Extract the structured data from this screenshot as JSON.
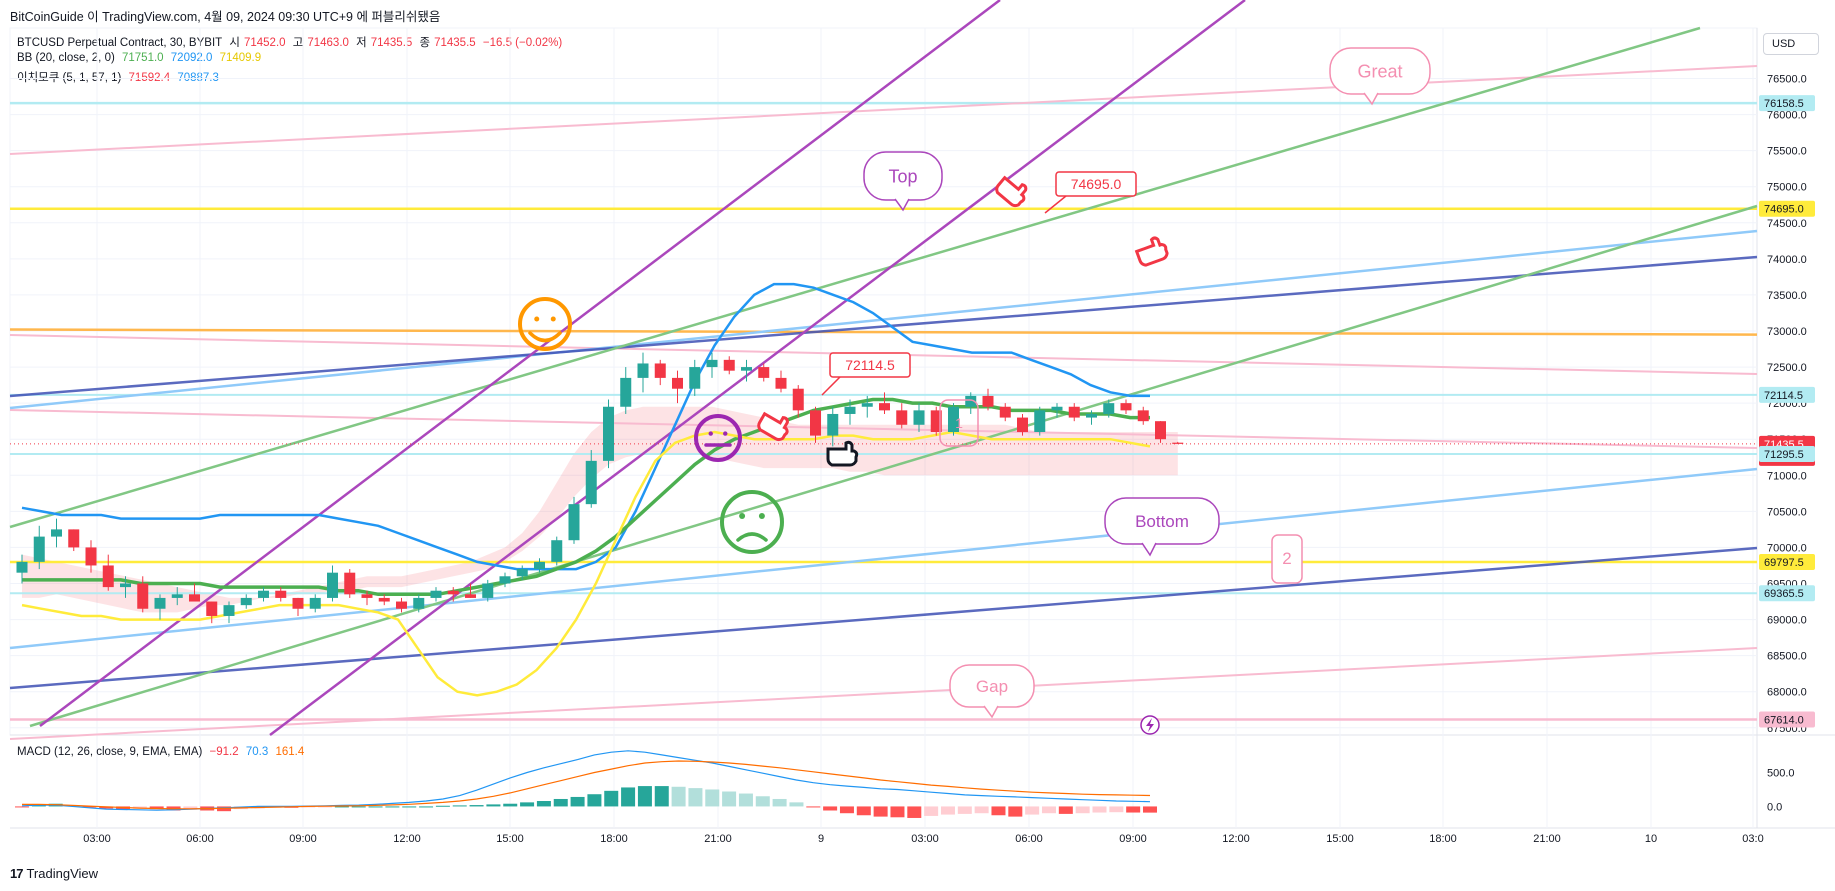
{
  "header": {
    "publisher": "BitCoinGuide 이 TradingView.com, 4월 09, 2024 09:30 UTC+9 에 퍼블리쉬됐음"
  },
  "legend": {
    "symbol": "BTCUSD Perpetual Contract, 30, BYBIT",
    "ohlc": [
      {
        "label": "시",
        "value": "71452.0"
      },
      {
        "label": "고",
        "value": "71463.0"
      },
      {
        "label": "저",
        "value": "71435.5"
      },
      {
        "label": "종",
        "value": "71435.5"
      }
    ],
    "change": "−16.5 (−0.02%)",
    "bb": {
      "label": "BB (20, close, 2, 0)",
      "basis": "71751.0",
      "upper": "72092.0",
      "lower": "71409.9"
    },
    "ichimoku": {
      "label": "이치모쿠 (5, 1, 57, 1)",
      "a": "71592.4",
      "b": "70887.3"
    },
    "macd": {
      "label": "MACD (12, 26, close, 9, EMA, EMA)",
      "hist": "−91.2",
      "macd": "70.3",
      "signal": "161.4"
    }
  },
  "currency_button": "USD",
  "footer": {
    "brand": "TradingView",
    "mark": "17"
  },
  "colors": {
    "up": "#26a69a",
    "down": "#f23645",
    "bb_basis": "#4caf50",
    "bb_upper": "#2196f3",
    "bb_lower": "#ffeb3b",
    "purple": "#ab47bc",
    "pink": "#f8bbd0",
    "cyan": "#b2ebf2",
    "yellow": "#ffeb3b",
    "orange": "#ffb74d",
    "navy": "#3f51b5",
    "blue": "#90caf9",
    "green": "#81c784"
  },
  "chart_data": {
    "type": "candlestick",
    "symbol": "BTCUSD Perpetual Contract",
    "interval": "30",
    "ylim": [
      67400,
      77200
    ],
    "y_ticks": [
      "76500.0",
      "76000.0",
      "75500.0",
      "75000.0",
      "74500.0",
      "74000.0",
      "73500.0",
      "73000.0",
      "72500.0",
      "72000.0",
      "71500.0",
      "71000.0",
      "70500.0",
      "70000.0",
      "69500.0",
      "69000.0",
      "68500.0",
      "68000.0",
      "67500.0"
    ],
    "x_ticks": [
      "03:00",
      "06:00",
      "09:00",
      "12:00",
      "15:00",
      "18:00",
      "21:00",
      "9",
      "03:00",
      "06:00",
      "09:00",
      "12:00",
      "15:00",
      "18:00",
      "21:00",
      "10",
      "03:0"
    ],
    "price_labels": [
      {
        "price": 76158.5,
        "text": "76158.5",
        "bg": "#b2ebf2",
        "fg": "#131722"
      },
      {
        "price": 74695.0,
        "text": "74695.0",
        "bg": "#ffeb3b",
        "fg": "#131722"
      },
      {
        "price": 72114.5,
        "text": "72114.5",
        "bg": "#b2ebf2",
        "fg": "#131722"
      },
      {
        "price": 71435.5,
        "text": "71435.5",
        "text2": "29:07",
        "bg": "#f23645",
        "fg": "#ffffff"
      },
      {
        "price": 71295.5,
        "text": "71295.5",
        "bg": "#b2ebf2",
        "fg": "#131722"
      },
      {
        "price": 69797.5,
        "text": "69797.5",
        "bg": "#ffeb3b",
        "fg": "#131722"
      },
      {
        "price": 69365.5,
        "text": "69365.5",
        "bg": "#b2ebf2",
        "fg": "#131722"
      },
      {
        "price": 67614.0,
        "text": "67614.0",
        "bg": "#f8bbd0",
        "fg": "#131722"
      }
    ],
    "candles": [
      [
        69650,
        69900,
        69500,
        69800
      ],
      [
        69800,
        70300,
        69700,
        70150
      ],
      [
        70150,
        70400,
        70000,
        70250
      ],
      [
        70250,
        70250,
        69950,
        70000
      ],
      [
        70000,
        70100,
        69650,
        69750
      ],
      [
        69750,
        69900,
        69400,
        69450
      ],
      [
        69450,
        69600,
        69300,
        69500
      ],
      [
        69500,
        69600,
        69100,
        69150
      ],
      [
        69150,
        69350,
        69000,
        69300
      ],
      [
        69300,
        69450,
        69200,
        69350
      ],
      [
        69350,
        69500,
        69300,
        69250
      ],
      [
        69250,
        69250,
        68950,
        69050
      ],
      [
        69050,
        69250,
        68950,
        69200
      ],
      [
        69200,
        69350,
        69150,
        69300
      ],
      [
        69300,
        69450,
        69250,
        69400
      ],
      [
        69400,
        69450,
        69250,
        69300
      ],
      [
        69300,
        69300,
        69050,
        69150
      ],
      [
        69150,
        69350,
        69100,
        69300
      ],
      [
        69300,
        69750,
        69250,
        69650
      ],
      [
        69650,
        69700,
        69300,
        69350
      ],
      [
        69350,
        69400,
        69200,
        69300
      ],
      [
        69300,
        69350,
        69200,
        69250
      ],
      [
        69250,
        69300,
        69100,
        69150
      ],
      [
        69150,
        69350,
        69100,
        69300
      ],
      [
        69300,
        69450,
        69250,
        69400
      ],
      [
        69400,
        69450,
        69250,
        69350
      ],
      [
        69350,
        69500,
        69300,
        69300
      ],
      [
        69300,
        69550,
        69250,
        69500
      ],
      [
        69500,
        69650,
        69450,
        69600
      ],
      [
        69600,
        69750,
        69550,
        69700
      ],
      [
        69700,
        69850,
        69650,
        69800
      ],
      [
        69800,
        70150,
        69750,
        70100
      ],
      [
        70100,
        70700,
        70050,
        70600
      ],
      [
        70600,
        71350,
        70550,
        71200
      ],
      [
        71200,
        72050,
        71100,
        71950
      ],
      [
        71950,
        72500,
        71850,
        72350
      ],
      [
        72350,
        72700,
        72150,
        72550
      ],
      [
        72550,
        72600,
        72250,
        72350
      ],
      [
        72350,
        72450,
        72000,
        72200
      ],
      [
        72200,
        72600,
        72100,
        72500
      ],
      [
        72500,
        72700,
        72350,
        72600
      ],
      [
        72600,
        72650,
        72400,
        72450
      ],
      [
        72450,
        72600,
        72300,
        72500
      ],
      [
        72500,
        72550,
        72300,
        72350
      ],
      [
        72350,
        72450,
        72150,
        72200
      ],
      [
        72200,
        72250,
        71800,
        71900
      ],
      [
        71900,
        71950,
        71450,
        71550
      ],
      [
        71550,
        71950,
        71400,
        71850
      ],
      [
        71850,
        72050,
        71700,
        71950
      ],
      [
        71950,
        72100,
        71800,
        72000
      ],
      [
        72000,
        72150,
        71850,
        71900
      ],
      [
        71900,
        72000,
        71650,
        71700
      ],
      [
        71700,
        72000,
        71600,
        71900
      ],
      [
        71900,
        71950,
        71550,
        71600
      ],
      [
        71600,
        72000,
        71550,
        71950
      ],
      [
        71950,
        72150,
        71850,
        72100
      ],
      [
        72100,
        72200,
        71900,
        71950
      ],
      [
        71950,
        72000,
        71750,
        71800
      ],
      [
        71800,
        71850,
        71550,
        71600
      ],
      [
        71600,
        71950,
        71550,
        71900
      ],
      [
        71900,
        72000,
        71800,
        71950
      ],
      [
        71950,
        72000,
        71750,
        71800
      ],
      [
        71800,
        71900,
        71700,
        71850
      ],
      [
        71850,
        72050,
        71800,
        72000
      ],
      [
        72000,
        72050,
        71850,
        71900
      ],
      [
        71900,
        71950,
        71700,
        71750
      ],
      [
        71750,
        71750,
        71450,
        71500
      ],
      [
        71452,
        71463,
        71435.5,
        71435.5
      ]
    ],
    "indicators": {
      "bb_basis": "71751.0",
      "bb_upper": "72092.0",
      "bb_lower": "71409.9",
      "ichimoku_a": "71592.4",
      "ichimoku_b": "70887.3"
    },
    "macd": {
      "ylim": [
        -200,
        950
      ],
      "y_ticks": [
        "500.0",
        "0.0"
      ],
      "hist": [
        -10,
        30,
        40,
        20,
        -10,
        -30,
        -40,
        -35,
        -40,
        -60,
        -50,
        -60,
        -70,
        -40,
        -30,
        -20,
        -20,
        -10,
        -5,
        0,
        0,
        0,
        0,
        0,
        0,
        10,
        15,
        20,
        30,
        40,
        60,
        80,
        110,
        140,
        180,
        230,
        280,
        300,
        300,
        290,
        270,
        250,
        220,
        190,
        150,
        110,
        60,
        -10,
        -60,
        -100,
        -130,
        -150,
        -160,
        -170,
        -140,
        -120,
        -110,
        -100,
        -130,
        -150,
        -120,
        -100,
        -110,
        -100,
        -90,
        -85,
        -90,
        -91.2
      ],
      "macd": [
        10,
        20,
        20,
        0,
        -20,
        -40,
        -45,
        -50,
        -55,
        -50,
        -40,
        -30,
        -20,
        -10,
        0,
        0,
        0,
        5,
        10,
        15,
        20,
        30,
        45,
        60,
        80,
        110,
        160,
        240,
        330,
        420,
        500,
        570,
        630,
        690,
        760,
        800,
        820,
        800,
        760,
        720,
        680,
        640,
        590,
        540,
        490,
        440,
        390,
        350,
        320,
        300,
        280,
        260,
        250,
        230,
        210,
        190,
        170,
        160,
        150,
        140,
        130,
        120,
        110,
        100,
        90,
        80,
        75,
        70.3
      ],
      "signal": [
        30,
        30,
        25,
        15,
        5,
        -5,
        -15,
        -25,
        -30,
        -35,
        -35,
        -32,
        -28,
        -22,
        -15,
        -10,
        -5,
        0,
        3,
        6,
        10,
        15,
        22,
        32,
        45,
        60,
        80,
        110,
        150,
        200,
        260,
        320,
        380,
        440,
        500,
        550,
        600,
        640,
        660,
        670,
        665,
        655,
        640,
        620,
        595,
        570,
        540,
        510,
        480,
        450,
        420,
        390,
        365,
        340,
        315,
        295,
        275,
        255,
        240,
        225,
        210,
        200,
        190,
        180,
        175,
        170,
        165,
        161.4
      ]
    },
    "drawings": [
      {
        "kind": "callout",
        "text": "Great",
        "color": "#f48fb1"
      },
      {
        "kind": "callout",
        "text": "Top",
        "color": "#ab47bc"
      },
      {
        "kind": "callout",
        "text": "74695.0",
        "color": "#f23645"
      },
      {
        "kind": "callout",
        "text": "72114.5",
        "color": "#f23645"
      },
      {
        "kind": "callout",
        "text": "Bottom",
        "color": "#ab47bc"
      },
      {
        "kind": "callout",
        "text": "2",
        "color": "#f48fb1"
      },
      {
        "kind": "callout",
        "text": "Gap",
        "color": "#f48fb1"
      },
      {
        "kind": "callout",
        "text": "1",
        "color": "#f48fb1"
      }
    ]
  }
}
